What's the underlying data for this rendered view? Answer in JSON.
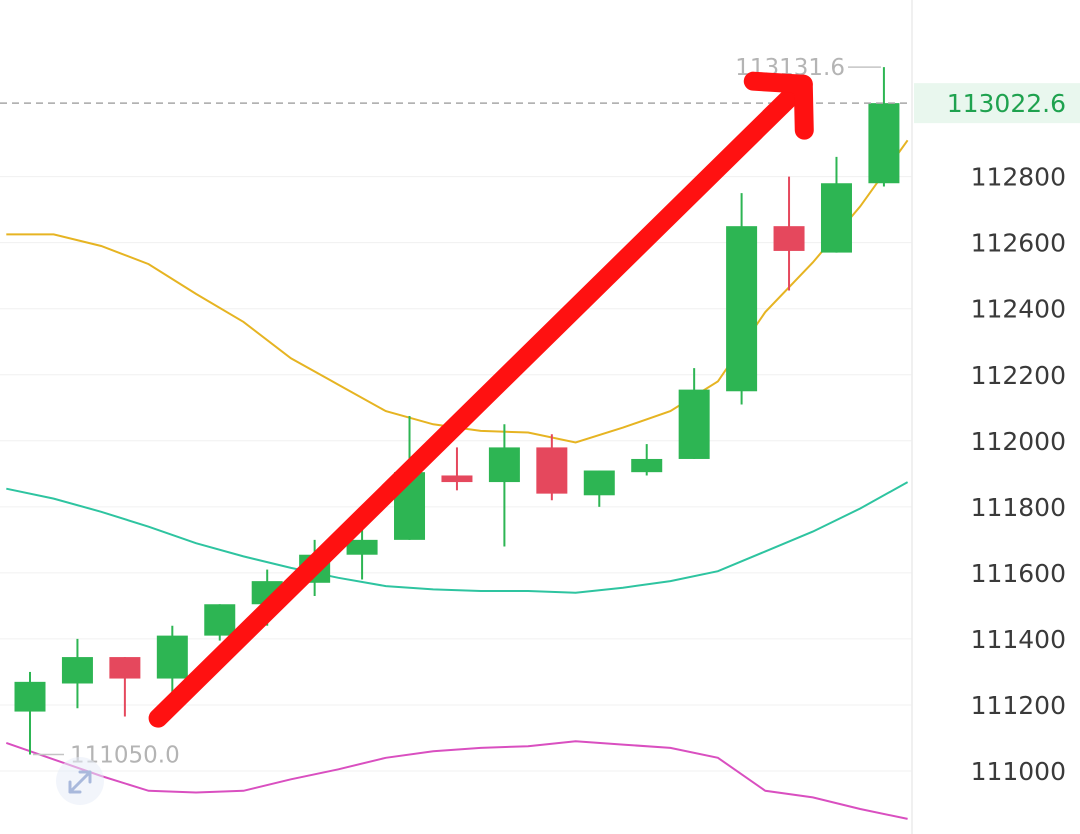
{
  "chart_data": {
    "type": "candlestick",
    "y_axis": {
      "ticks": [
        111000,
        111200,
        111400,
        111600,
        111800,
        112000,
        112200,
        112400,
        112600,
        112800
      ],
      "ylim": [
        110830,
        113250
      ],
      "position": "right"
    },
    "last_price": 113022.6,
    "last_price_label": "113022.6",
    "high_marker": {
      "label": "113131.6",
      "value": 113131.6
    },
    "low_marker": {
      "label": "111050.0",
      "value": 111050.0
    },
    "candles": [
      {
        "open": 111180,
        "close": 111270,
        "high": 111300,
        "low": 111050
      },
      {
        "open": 111265,
        "close": 111345,
        "high": 111400,
        "low": 111190
      },
      {
        "open": 111345,
        "close": 111280,
        "high": 111345,
        "low": 111165
      },
      {
        "open": 111280,
        "close": 111410,
        "high": 111440,
        "low": 111185
      },
      {
        "open": 111410,
        "close": 111505,
        "high": 111505,
        "low": 111395
      },
      {
        "open": 111505,
        "close": 111575,
        "high": 111610,
        "low": 111440
      },
      {
        "open": 111570,
        "close": 111655,
        "high": 111700,
        "low": 111530
      },
      {
        "open": 111655,
        "close": 111700,
        "high": 111740,
        "low": 111580
      },
      {
        "open": 111700,
        "close": 111905,
        "high": 112075,
        "low": 111700
      },
      {
        "open": 111895,
        "close": 111875,
        "high": 111980,
        "low": 111850
      },
      {
        "open": 111875,
        "close": 111980,
        "high": 112050,
        "low": 111680
      },
      {
        "open": 111980,
        "close": 111840,
        "high": 112020,
        "low": 111820
      },
      {
        "open": 111835,
        "close": 111910,
        "high": 111910,
        "low": 111800
      },
      {
        "open": 111905,
        "close": 111945,
        "high": 111990,
        "low": 111895
      },
      {
        "open": 111945,
        "close": 112155,
        "high": 112220,
        "low": 111945
      },
      {
        "open": 112150,
        "close": 112650,
        "high": 112750,
        "low": 112110
      },
      {
        "open": 112650,
        "close": 112575,
        "high": 112800,
        "low": 112455
      },
      {
        "open": 112570,
        "close": 112780,
        "high": 112860,
        "low": 112570
      },
      {
        "open": 112780,
        "close": 113022.6,
        "high": 113131.6,
        "low": 112770
      }
    ],
    "bands": [
      {
        "role": "upper",
        "color": "#e6b422",
        "points": [
          [
            -0.5,
            112625
          ],
          [
            0.5,
            112625
          ],
          [
            1.5,
            112590
          ],
          [
            2.5,
            112535
          ],
          [
            3.5,
            112445
          ],
          [
            4.5,
            112360
          ],
          [
            5.5,
            112250
          ],
          [
            6.5,
            112170
          ],
          [
            7.5,
            112090
          ],
          [
            8.5,
            112050
          ],
          [
            9.5,
            112030
          ],
          [
            10.5,
            112025
          ],
          [
            11.5,
            111995
          ],
          [
            12.5,
            112040
          ],
          [
            13.5,
            112090
          ],
          [
            14.5,
            112180
          ],
          [
            15.5,
            112390
          ],
          [
            16.5,
            112540
          ],
          [
            17.5,
            112710
          ],
          [
            18.5,
            112910
          ]
        ]
      },
      {
        "role": "middle",
        "color": "#2ec4a0",
        "points": [
          [
            -0.5,
            111855
          ],
          [
            0.5,
            111825
          ],
          [
            1.5,
            111785
          ],
          [
            2.5,
            111740
          ],
          [
            3.5,
            111690
          ],
          [
            4.5,
            111650
          ],
          [
            5.5,
            111615
          ],
          [
            6.5,
            111585
          ],
          [
            7.5,
            111560
          ],
          [
            8.5,
            111550
          ],
          [
            9.5,
            111545
          ],
          [
            10.5,
            111545
          ],
          [
            11.5,
            111540
          ],
          [
            12.5,
            111555
          ],
          [
            13.5,
            111575
          ],
          [
            14.5,
            111605
          ],
          [
            15.5,
            111665
          ],
          [
            16.5,
            111725
          ],
          [
            17.5,
            111795
          ],
          [
            18.5,
            111875
          ]
        ]
      },
      {
        "role": "lower",
        "color": "#d94fc0",
        "points": [
          [
            -0.5,
            111085
          ],
          [
            0.5,
            111035
          ],
          [
            1.5,
            110985
          ],
          [
            2.5,
            110940
          ],
          [
            3.5,
            110935
          ],
          [
            4.5,
            110940
          ],
          [
            5.5,
            110975
          ],
          [
            6.5,
            111005
          ],
          [
            7.5,
            111040
          ],
          [
            8.5,
            111060
          ],
          [
            9.5,
            111070
          ],
          [
            10.5,
            111075
          ],
          [
            11.5,
            111090
          ],
          [
            12.5,
            111080
          ],
          [
            13.5,
            111070
          ],
          [
            14.5,
            111040
          ],
          [
            15.5,
            110940
          ],
          [
            16.5,
            110920
          ],
          [
            17.5,
            110885
          ],
          [
            18.5,
            110855
          ]
        ]
      }
    ],
    "colors": {
      "up": "#2db553",
      "down": "#e5485d",
      "grid": "#f0f0f0",
      "arrow": "#ff1111"
    },
    "annotation": {
      "type": "arrow",
      "from": [
        2.7,
        111160
      ],
      "to": [
        16.3,
        113080
      ]
    }
  }
}
